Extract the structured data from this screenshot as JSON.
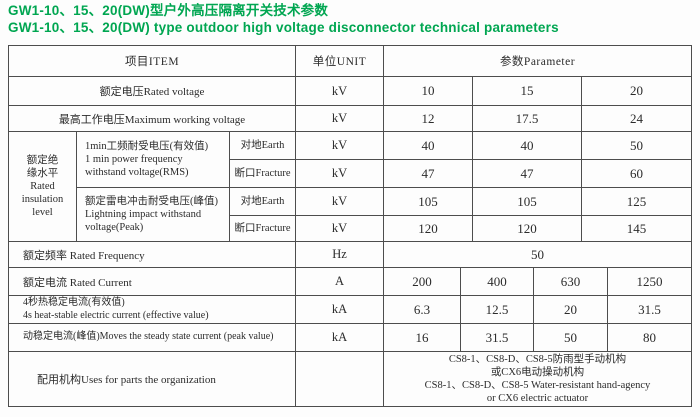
{
  "title": {
    "line1_zh": "GW1-10、15、20(DW)型户外高压隔离开关技术参数",
    "line2_en": "GW1-10、15、20(DW) type outdoor high voltage disconnector technical parameters"
  },
  "colors": {
    "accent_green": "#00a651",
    "border_gray": "#4d4d4d",
    "text": "#2b2b2b",
    "background": "#fdfdfd"
  },
  "table": {
    "header": {
      "item": "项目ITEM",
      "unit": "单位UNIT",
      "param": "参数Parameter"
    },
    "rows": {
      "rated_voltage": {
        "label": "额定电压Rated voltage",
        "unit": "kV",
        "values": [
          "10",
          "15",
          "20"
        ]
      },
      "max_working_voltage": {
        "label": "最高工作电压Maximum working voltage",
        "unit": "kV",
        "values": [
          "12",
          "17.5",
          "24"
        ]
      },
      "insulation": {
        "group_label": "额定绝\n缘水平\nRated\ninsulation\nlevel",
        "power_frequency": {
          "desc": "1min工频耐受电压(有效值)\n1 min power frequency\nwithstand voltage(RMS)",
          "earth": {
            "label": "对地Earth",
            "unit": "kV",
            "values": [
              "40",
              "40",
              "50"
            ]
          },
          "fracture": {
            "label": "断口Fracture",
            "unit": "kV",
            "values": [
              "47",
              "47",
              "60"
            ]
          }
        },
        "lightning": {
          "desc": "额定雷电冲击耐受电压(峰值)\nLightning impact withstand\nvoltage(Peak)",
          "earth": {
            "label": "对地Earth",
            "unit": "kV",
            "values": [
              "105",
              "105",
              "125"
            ]
          },
          "fracture": {
            "label": "断口Fracture",
            "unit": "kV",
            "values": [
              "120",
              "120",
              "145"
            ]
          }
        }
      },
      "rated_frequency": {
        "label": "额定频率 Rated Frequency",
        "unit": "Hz",
        "value": "50"
      },
      "rated_current": {
        "label": "额定电流 Rated Current",
        "unit": "A",
        "values": [
          "200",
          "400",
          "630",
          "1250"
        ]
      },
      "heat_stable_current": {
        "label": "4秒热稳定电流(有效值)\n4s heat-stable electric current (effective value)",
        "unit": "kA",
        "values": [
          "6.3",
          "12.5",
          "20",
          "31.5"
        ]
      },
      "dynamic_stable_current": {
        "label": "动稳定电流(峰值)Moves the steady state current (peak value)",
        "unit": "kA",
        "values": [
          "16",
          "31.5",
          "50",
          "80"
        ]
      },
      "mechanism": {
        "label": "配用机构Uses for parts the organization",
        "unit": "",
        "value": "CS8-1、CS8-D、CS8-5防雨型手动机构\n或CX6电动操动机构\nCS8-1、CS8-D、CS8-5 Water-resistant hand-agency\nor CX6 electric actuator"
      }
    }
  }
}
